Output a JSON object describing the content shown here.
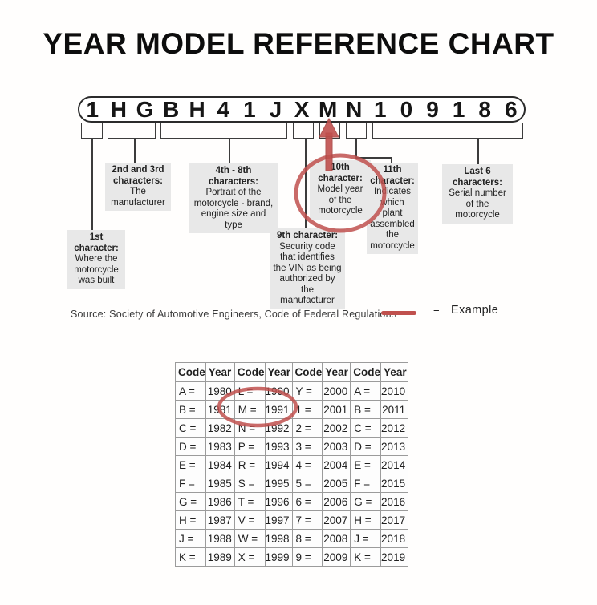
{
  "colors": {
    "accent_red": "#c0504d",
    "callout_bg": "#e8e8e8",
    "line": "#3c3c3c",
    "table_border": "#9b9b9b"
  },
  "title": "YEAR MODEL REFERENCE CHART",
  "vin": {
    "characters": [
      "1",
      "H",
      "G",
      "B",
      "H",
      "4",
      "1",
      "J",
      "X",
      "M",
      "N",
      "1",
      "0",
      "9",
      "1",
      "8",
      "6"
    ]
  },
  "callouts": [
    {
      "heading": "1st character:",
      "body": "Where the motorcycle was built"
    },
    {
      "heading": "2nd and 3rd characters:",
      "body": "The manufacturer"
    },
    {
      "heading": "4th - 8th characters:",
      "body": "Portrait of the motorcycle - brand, engine size and type"
    },
    {
      "heading": "9th character:",
      "body": "Security code that identifies the VIN as being authorized by the manufacturer"
    },
    {
      "heading": "10th character:",
      "body": "Model year of the motorcycle"
    },
    {
      "heading": "11th character:",
      "body": "Indicates which plant assembled the motorcycle"
    },
    {
      "heading": "Last 6 characters:",
      "body": "Serial number of the motorcycle"
    }
  ],
  "source_line": "Source:  Society of Automotive Engineers, Code of Federal Regulations",
  "legend": {
    "equals_sign": "=",
    "label": "Example"
  },
  "year_table": {
    "headers": [
      "Code",
      "Year",
      "Code",
      "Year",
      "Code",
      "Year",
      "Code",
      "Year"
    ],
    "rows": [
      [
        "A =",
        "1980",
        "L =",
        "1990",
        "Y =",
        "2000",
        "A =",
        "2010"
      ],
      [
        "B =",
        "1981",
        "M =",
        "1991",
        "1 =",
        "2001",
        "B =",
        "2011"
      ],
      [
        "C =",
        "1982",
        "N =",
        "1992",
        "2 =",
        "2002",
        "C =",
        "2012"
      ],
      [
        "D =",
        "1983",
        "P =",
        "1993",
        "3 =",
        "2003",
        "D =",
        "2013"
      ],
      [
        "E =",
        "1984",
        "R =",
        "1994",
        "4 =",
        "2004",
        "E =",
        "2014"
      ],
      [
        "F =",
        "1985",
        "S =",
        "1995",
        "5 =",
        "2005",
        "F =",
        "2015"
      ],
      [
        "G =",
        "1986",
        "T =",
        "1996",
        "6 =",
        "2006",
        "G =",
        "2016"
      ],
      [
        "H =",
        "1987",
        "V =",
        "1997",
        "7 =",
        "2007",
        "H =",
        "2017"
      ],
      [
        "J =",
        "1988",
        "W =",
        "1998",
        "8 =",
        "2008",
        "J =",
        "2018"
      ],
      [
        "K =",
        "1989",
        "X =",
        "1999",
        "9 =",
        "2009",
        "K =",
        "2019"
      ]
    ],
    "circled_entry": "M = 1991"
  }
}
